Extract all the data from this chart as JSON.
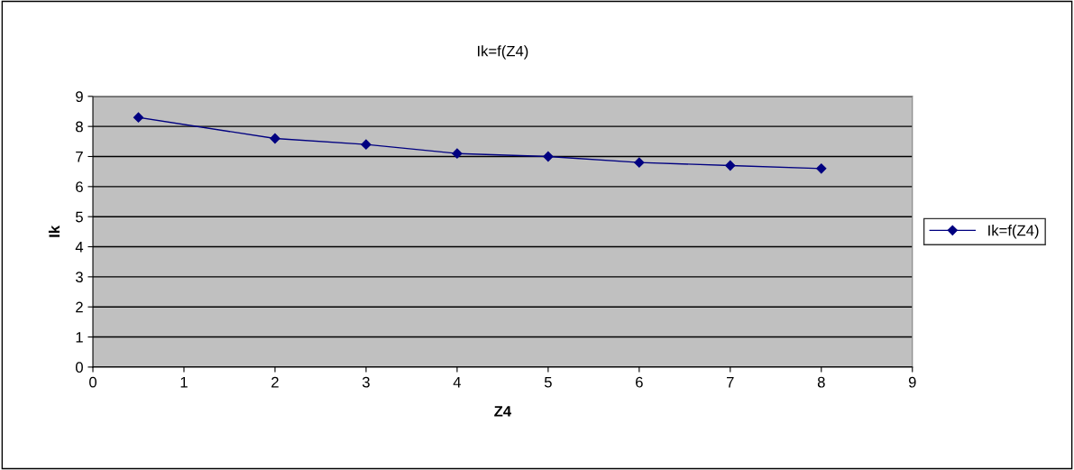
{
  "chart_data": {
    "type": "line",
    "title": "Ik=f(Z4)",
    "xlabel": "Z4",
    "ylabel": "Ik",
    "x": [
      0.5,
      2,
      3,
      4,
      5,
      6,
      7,
      8
    ],
    "series": [
      {
        "name": "Ik=f(Z4)",
        "color": "#000080",
        "values": [
          8.3,
          7.6,
          7.4,
          7.1,
          7.0,
          6.8,
          6.7,
          6.6
        ]
      }
    ],
    "xlim": [
      0,
      9
    ],
    "xticks": [
      0,
      1,
      2,
      3,
      4,
      5,
      6,
      7,
      8,
      9
    ],
    "ylim": [
      0,
      9
    ],
    "yticks": [
      0,
      1,
      2,
      3,
      4,
      5,
      6,
      7,
      8,
      9
    ],
    "grid": "y",
    "legend": "right",
    "marker": "diamond",
    "line_style": "solid"
  }
}
